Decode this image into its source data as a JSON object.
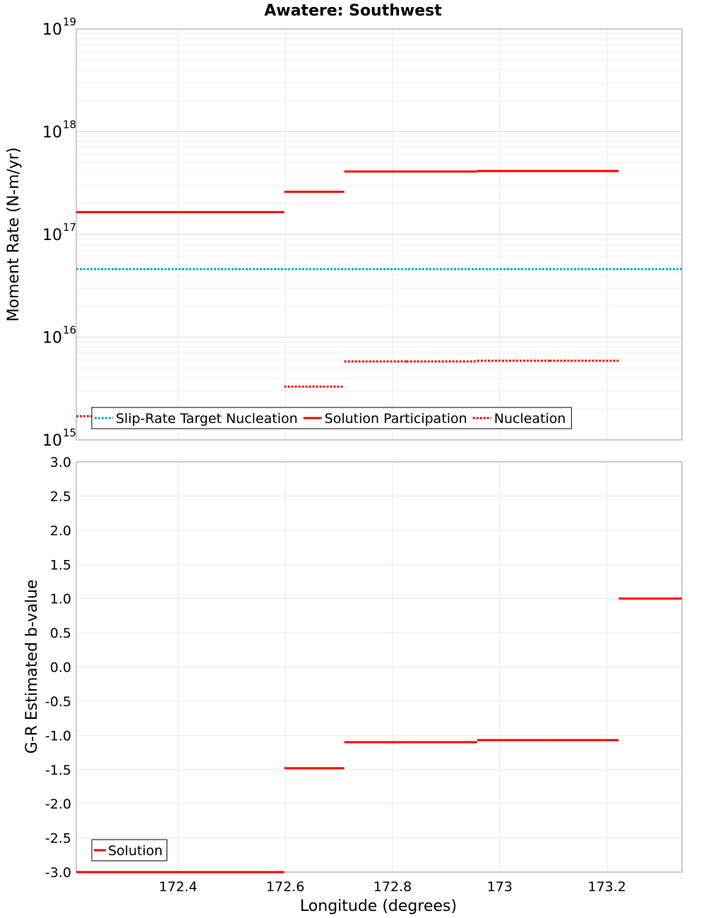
{
  "chart_data": [
    {
      "type": "line",
      "title": "Awatere: Southwest",
      "ylabel": "Moment Rate (N-m/yr)",
      "y_scale": "log",
      "ylim": [
        1000000000000000.0,
        1e+19
      ],
      "y_tick_labels": [
        {
          "base": "10",
          "exp": "15",
          "value": 1000000000000000.0
        },
        {
          "base": "10",
          "exp": "16",
          "value": 1e+16
        },
        {
          "base": "10",
          "exp": "17",
          "value": 1e+17
        },
        {
          "base": "10",
          "exp": "18",
          "value": 1e+18
        },
        {
          "base": "10",
          "exp": "19",
          "value": 1e+19
        }
      ],
      "xlim": [
        172.21,
        173.34
      ],
      "grid": true,
      "legend_position": "bottom-left",
      "series": [
        {
          "name": "Slip-Rate Target Nucleation",
          "color": "#00b0b8",
          "style": "dotted",
          "segments": [
            {
              "x0": 172.21,
              "x1": 173.34,
              "y": 4.6e+16
            }
          ]
        },
        {
          "name": "Solution Participation",
          "color": "#ff0000",
          "style": "solid",
          "segments": [
            {
              "x0": 172.21,
              "x1": 172.347,
              "y": 1.65e+17
            },
            {
              "x0": 172.347,
              "x1": 172.479,
              "y": 1.65e+17
            },
            {
              "x0": 172.479,
              "x1": 172.598,
              "y": 1.65e+17
            },
            {
              "x0": 172.598,
              "x1": 172.71,
              "y": 2.6e+17
            },
            {
              "x0": 172.71,
              "x1": 172.826,
              "y": 4.1e+17
            },
            {
              "x0": 172.826,
              "x1": 172.958,
              "y": 4.1e+17
            },
            {
              "x0": 172.958,
              "x1": 173.093,
              "y": 4.15e+17
            },
            {
              "x0": 173.093,
              "x1": 173.222,
              "y": 4.15e+17
            }
          ]
        },
        {
          "name": "Nucleation",
          "color": "#ff0000",
          "style": "dotted",
          "segments": [
            {
              "x0": 172.21,
              "x1": 172.347,
              "y": 1700000000000000.0
            },
            {
              "x0": 172.347,
              "x1": 172.479,
              "y": 1700000000000000.0
            },
            {
              "x0": 172.479,
              "x1": 172.598,
              "y": 1700000000000000.0
            },
            {
              "x0": 172.598,
              "x1": 172.71,
              "y": 3300000000000000.0
            },
            {
              "x0": 172.71,
              "x1": 172.826,
              "y": 5800000000000000.0
            },
            {
              "x0": 172.826,
              "x1": 172.958,
              "y": 5800000000000000.0
            },
            {
              "x0": 172.958,
              "x1": 173.093,
              "y": 5900000000000000.0
            },
            {
              "x0": 173.093,
              "x1": 173.222,
              "y": 5900000000000000.0
            }
          ]
        }
      ]
    },
    {
      "type": "line",
      "xlabel": "Longitude (degrees)",
      "ylabel": "G-R Estimated b-value",
      "ylim": [
        -3.0,
        3.0
      ],
      "xlim": [
        172.21,
        173.34
      ],
      "grid": true,
      "legend_position": "bottom-left",
      "x_ticks": [
        {
          "value": 172.4,
          "label": "172.4"
        },
        {
          "value": 172.6,
          "label": "172.6"
        },
        {
          "value": 172.8,
          "label": "172.8"
        },
        {
          "value": 173.0,
          "label": "173"
        },
        {
          "value": 173.2,
          "label": "173.2"
        }
      ],
      "y_ticks": [
        {
          "value": 3.0,
          "label": "3.0"
        },
        {
          "value": 2.5,
          "label": "2.5"
        },
        {
          "value": 2.0,
          "label": "2.0"
        },
        {
          "value": 1.5,
          "label": "1.5"
        },
        {
          "value": 1.0,
          "label": "1.0"
        },
        {
          "value": 0.5,
          "label": "0.5"
        },
        {
          "value": 0.0,
          "label": "0.0"
        },
        {
          "value": -0.5,
          "label": "-0.5"
        },
        {
          "value": -1.0,
          "label": "-1.0"
        },
        {
          "value": -1.5,
          "label": "-1.5"
        },
        {
          "value": -2.0,
          "label": "-2.0"
        },
        {
          "value": -2.5,
          "label": "-2.5"
        },
        {
          "value": -3.0,
          "label": "-3.0"
        }
      ],
      "series": [
        {
          "name": "Solution",
          "color": "#ff0000",
          "style": "solid",
          "segments": [
            {
              "x0": 172.21,
              "x1": 172.347,
              "y": -3.0
            },
            {
              "x0": 172.347,
              "x1": 172.479,
              "y": -3.0
            },
            {
              "x0": 172.479,
              "x1": 172.598,
              "y": -3.0
            },
            {
              "x0": 172.598,
              "x1": 172.71,
              "y": -1.48
            },
            {
              "x0": 172.71,
              "x1": 172.826,
              "y": -1.1
            },
            {
              "x0": 172.826,
              "x1": 172.958,
              "y": -1.1
            },
            {
              "x0": 172.958,
              "x1": 173.093,
              "y": -1.07
            },
            {
              "x0": 173.093,
              "x1": 173.222,
              "y": -1.07
            },
            {
              "x0": 173.222,
              "x1": 173.34,
              "y": 1.0
            }
          ]
        }
      ]
    }
  ]
}
